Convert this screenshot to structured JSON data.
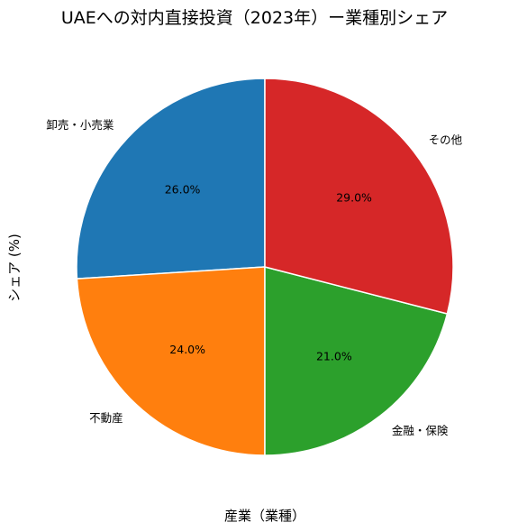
{
  "chart_data": {
    "type": "pie",
    "title": "UAEへの対内直接投資（2023年）ー業種別シェア",
    "xlabel": "産業（業種）",
    "ylabel": "シェア (%)",
    "categories": [
      "卸売・小売業",
      "不動産",
      "金融・保険",
      "その他"
    ],
    "values": [
      26.0,
      24.0,
      21.0,
      29.0
    ],
    "value_labels": [
      "26.0%",
      "24.0%",
      "21.0%",
      "29.0%"
    ],
    "colors": [
      "#1f77b4",
      "#ff7f0e",
      "#2ca02c",
      "#d62728"
    ],
    "start_angle": 90,
    "direction": "counterclockwise",
    "legend": "none"
  }
}
